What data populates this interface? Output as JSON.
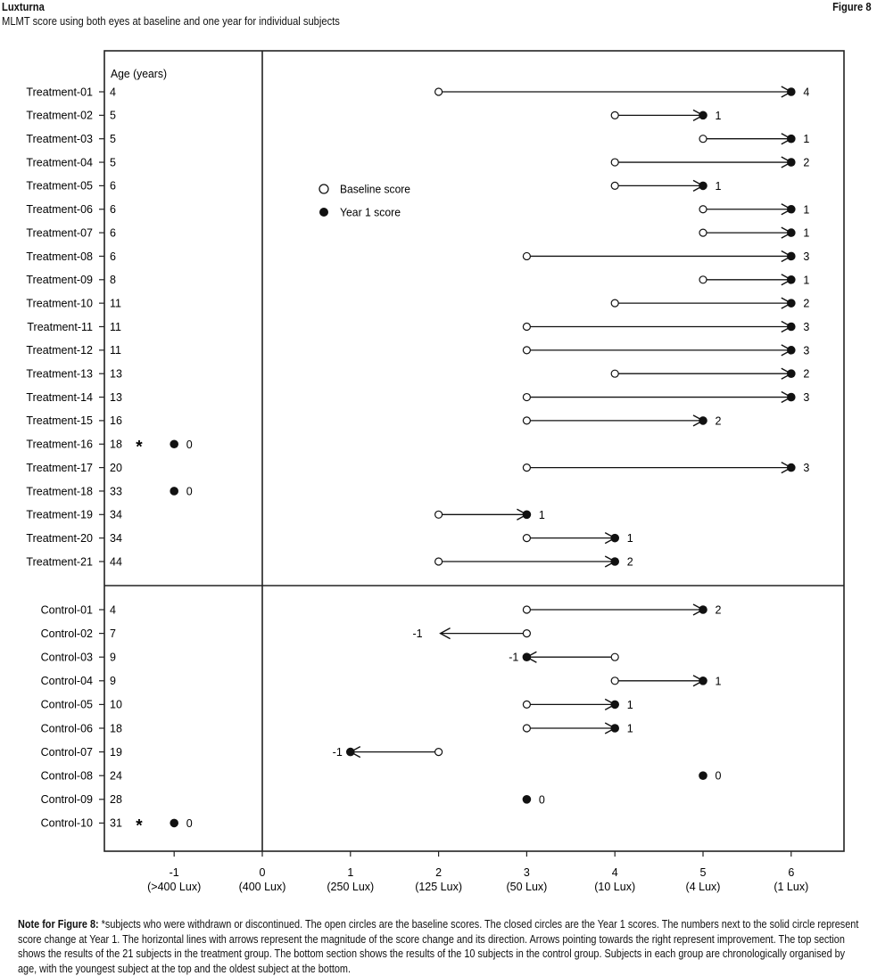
{
  "header": {
    "brand": "Luxturna",
    "figure": "Figure 8",
    "title": "MLMT score using both eyes at baseline and one year for individual subjects"
  },
  "chart_data": {
    "type": "scatter",
    "age_header": "Age (years)",
    "legend": {
      "baseline": "Baseline score",
      "year1": "Year 1 score"
    },
    "x_ticks": [
      {
        "value": -1,
        "label": "-1",
        "sublabel": "(>400 Lux)"
      },
      {
        "value": 0,
        "label": "0",
        "sublabel": "(400 Lux)"
      },
      {
        "value": 1,
        "label": "1",
        "sublabel": "(250 Lux)"
      },
      {
        "value": 2,
        "label": "2",
        "sublabel": "(125 Lux)"
      },
      {
        "value": 3,
        "label": "3",
        "sublabel": "(50 Lux)"
      },
      {
        "value": 4,
        "label": "4",
        "sublabel": "(10 Lux)"
      },
      {
        "value": 5,
        "label": "5",
        "sublabel": "(4 Lux)"
      },
      {
        "value": 6,
        "label": "6",
        "sublabel": "(1 Lux)"
      }
    ],
    "xlim": [
      -1.8,
      6.6
    ],
    "groups": [
      {
        "name": "treatment",
        "subjects": [
          {
            "label": "Treatment-01",
            "age": "4",
            "baseline": 2,
            "year1": 6,
            "change": "4"
          },
          {
            "label": "Treatment-02",
            "age": "5",
            "baseline": 4,
            "year1": 5,
            "change": "1"
          },
          {
            "label": "Treatment-03",
            "age": "5",
            "baseline": 5,
            "year1": 6,
            "change": "1"
          },
          {
            "label": "Treatment-04",
            "age": "5",
            "baseline": 4,
            "year1": 6,
            "change": "2"
          },
          {
            "label": "Treatment-05",
            "age": "6",
            "baseline": 4,
            "year1": 5,
            "change": "1"
          },
          {
            "label": "Treatment-06",
            "age": "6",
            "baseline": 5,
            "year1": 6,
            "change": "1"
          },
          {
            "label": "Treatment-07",
            "age": "6",
            "baseline": 5,
            "year1": 6,
            "change": "1"
          },
          {
            "label": "Treatment-08",
            "age": "6",
            "baseline": 3,
            "year1": 6,
            "change": "3"
          },
          {
            "label": "Treatment-09",
            "age": "8",
            "baseline": 5,
            "year1": 6,
            "change": "1"
          },
          {
            "label": "Treatment-10",
            "age": "11",
            "baseline": 4,
            "year1": 6,
            "change": "2"
          },
          {
            "label": "Treatment-11",
            "age": "11",
            "baseline": 3,
            "year1": 6,
            "change": "3"
          },
          {
            "label": "Treatment-12",
            "age": "11",
            "baseline": 3,
            "year1": 6,
            "change": "3"
          },
          {
            "label": "Treatment-13",
            "age": "13",
            "baseline": 4,
            "year1": 6,
            "change": "2"
          },
          {
            "label": "Treatment-14",
            "age": "13",
            "baseline": 3,
            "year1": 6,
            "change": "3"
          },
          {
            "label": "Treatment-15",
            "age": "16",
            "baseline": 3,
            "year1": 5,
            "change": "2"
          },
          {
            "label": "Treatment-16",
            "age": "18",
            "baseline": null,
            "year1": -1,
            "change": "0",
            "withdrawn": "*"
          },
          {
            "label": "Treatment-17",
            "age": "20",
            "baseline": 3,
            "year1": 6,
            "change": "3"
          },
          {
            "label": "Treatment-18",
            "age": "33",
            "baseline": null,
            "year1": -1,
            "change": "0"
          },
          {
            "label": "Treatment-19",
            "age": "34",
            "baseline": 2,
            "year1": 3,
            "change": "1"
          },
          {
            "label": "Treatment-20",
            "age": "34",
            "baseline": 3,
            "year1": 4,
            "change": "1"
          },
          {
            "label": "Treatment-21",
            "age": "44",
            "baseline": 2,
            "year1": 4,
            "change": "2"
          }
        ]
      },
      {
        "name": "control",
        "subjects": [
          {
            "label": "Control-01",
            "age": "4",
            "baseline": 3,
            "year1": 5,
            "change": "2"
          },
          {
            "label": "Control-02",
            "age": "7",
            "baseline": 3,
            "year1": 2,
            "change": "-1",
            "year1_open": true
          },
          {
            "label": "Control-03",
            "age": "9",
            "baseline": 4,
            "year1": 3,
            "change": "-1"
          },
          {
            "label": "Control-04",
            "age": "9",
            "baseline": 4,
            "year1": 5,
            "change": "1"
          },
          {
            "label": "Control-05",
            "age": "10",
            "baseline": 3,
            "year1": 4,
            "change": "1"
          },
          {
            "label": "Control-06",
            "age": "18",
            "baseline": 3,
            "year1": 4,
            "change": "1"
          },
          {
            "label": "Control-07",
            "age": "19",
            "baseline": 2,
            "year1": 1,
            "change": "-1"
          },
          {
            "label": "Control-08",
            "age": "24",
            "baseline": null,
            "year1": 5,
            "change": "0"
          },
          {
            "label": "Control-09",
            "age": "28",
            "baseline": null,
            "year1": 3,
            "change": "0"
          },
          {
            "label": "Control-10",
            "age": "31",
            "baseline": null,
            "year1": -1,
            "change": "0",
            "withdrawn": "*"
          }
        ]
      }
    ]
  },
  "note": {
    "label": "Note for Figure 8:",
    "text": " *subjects who were withdrawn or discontinued. The open circles are the baseline scores. The closed circles are the Year 1 scores. The numbers next to the solid circle represent score change at Year 1. The horizontal lines with arrows represent the magnitude of the score change and its direction. Arrows pointing towards the right represent improvement. The top section shows the results of the 21 subjects in the treatment group. The bottom section shows the results of the 10 subjects in the control group. Subjects in each group are chronologically organised by age, with the youngest subject at the top and the oldest subject at the bottom."
  }
}
